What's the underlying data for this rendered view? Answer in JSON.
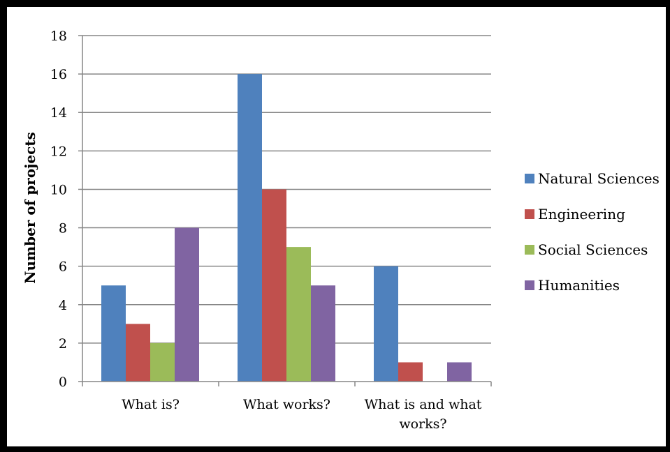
{
  "chart_data": {
    "type": "bar",
    "categories": [
      [
        "What is?"
      ],
      [
        "What works?"
      ],
      [
        "What is and what",
        "works?"
      ]
    ],
    "series": [
      {
        "name": "Natural Sciences",
        "color": "#4F81BD",
        "values": [
          5,
          16,
          6
        ]
      },
      {
        "name": "Engineering",
        "color": "#C0504D",
        "values": [
          3,
          10,
          1
        ]
      },
      {
        "name": "Social Sciences",
        "color": "#9BBB59",
        "values": [
          2,
          7,
          0
        ]
      },
      {
        "name": "Humanities",
        "color": "#8064A2",
        "values": [
          8,
          5,
          1
        ]
      }
    ],
    "ylabel": "Number of projects",
    "xlabel": "",
    "title": "",
    "ylim": [
      0,
      18
    ],
    "yticks": [
      0,
      2,
      4,
      6,
      8,
      10,
      12,
      14,
      16,
      18
    ],
    "grid": true,
    "legend_position": "right",
    "gridline_color": "#868686",
    "axis_color": "#868686"
  }
}
